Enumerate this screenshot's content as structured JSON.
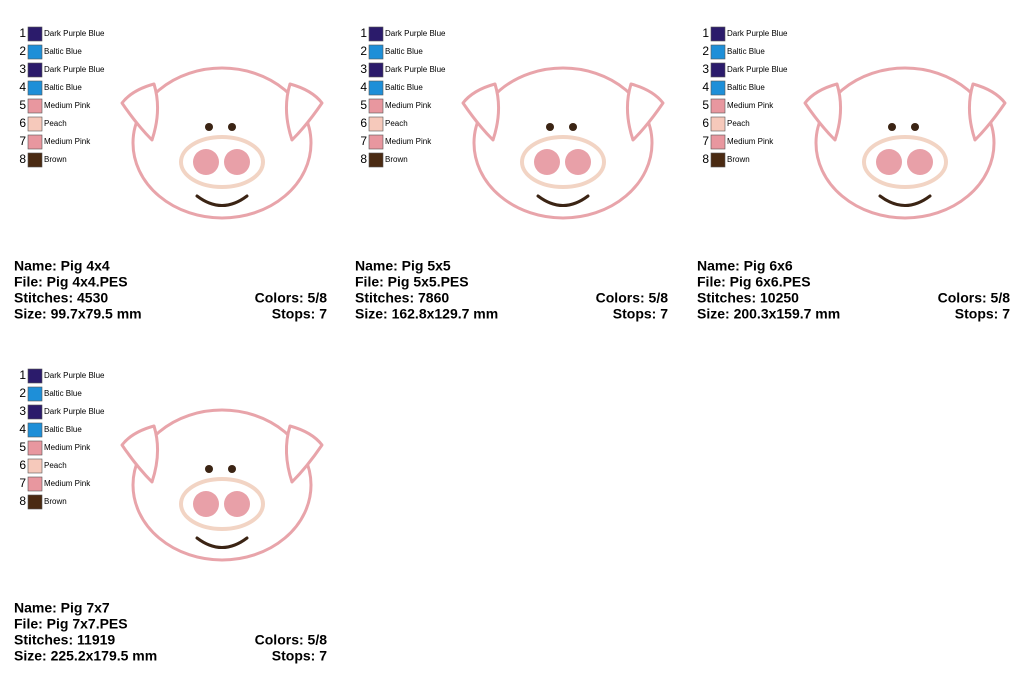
{
  "cards": [
    {
      "threads": [
        {
          "n": 1,
          "color": "#2b1b6b",
          "name": "Dark Purple Blue"
        },
        {
          "n": 2,
          "color": "#1e8fd8",
          "name": "Baltic Blue"
        },
        {
          "n": 3,
          "color": "#2b1b6b",
          "name": "Dark Purple Blue"
        },
        {
          "n": 4,
          "color": "#1e8fd8",
          "name": "Baltic Blue"
        },
        {
          "n": 5,
          "color": "#e8979f",
          "name": "Medium Pink"
        },
        {
          "n": 6,
          "color": "#f6c9bb",
          "name": "Peach"
        },
        {
          "n": 7,
          "color": "#e8979f",
          "name": "Medium Pink"
        },
        {
          "n": 8,
          "color": "#4a2a12",
          "name": "Brown"
        }
      ],
      "name": "Name: Pig 4x4",
      "file": "File: Pig 4x4.PES",
      "stitches": "Stitches: 4530",
      "colors": "Colors: 5/8",
      "size": "Size: 99.7x79.5 mm",
      "stops": "Stops: 7"
    },
    {
      "threads": [
        {
          "n": 1,
          "color": "#2b1b6b",
          "name": "Dark Purple Blue"
        },
        {
          "n": 2,
          "color": "#1e8fd8",
          "name": "Baltic Blue"
        },
        {
          "n": 3,
          "color": "#2b1b6b",
          "name": "Dark Purple Blue"
        },
        {
          "n": 4,
          "color": "#1e8fd8",
          "name": "Baltic Blue"
        },
        {
          "n": 5,
          "color": "#e8979f",
          "name": "Medium Pink"
        },
        {
          "n": 6,
          "color": "#f6c9bb",
          "name": "Peach"
        },
        {
          "n": 7,
          "color": "#e8979f",
          "name": "Medium Pink"
        },
        {
          "n": 8,
          "color": "#4a2a12",
          "name": "Brown"
        }
      ],
      "name": "Name: Pig 5x5",
      "file": "File: Pig 5x5.PES",
      "stitches": "Stitches: 7860",
      "colors": "Colors: 5/8",
      "size": "Size: 162.8x129.7 mm",
      "stops": "Stops: 7"
    },
    {
      "threads": [
        {
          "n": 1,
          "color": "#2b1b6b",
          "name": "Dark Purple Blue"
        },
        {
          "n": 2,
          "color": "#1e8fd8",
          "name": "Baltic Blue"
        },
        {
          "n": 3,
          "color": "#2b1b6b",
          "name": "Dark Purple Blue"
        },
        {
          "n": 4,
          "color": "#1e8fd8",
          "name": "Baltic Blue"
        },
        {
          "n": 5,
          "color": "#e8979f",
          "name": "Medium Pink"
        },
        {
          "n": 6,
          "color": "#f6c9bb",
          "name": "Peach"
        },
        {
          "n": 7,
          "color": "#e8979f",
          "name": "Medium Pink"
        },
        {
          "n": 8,
          "color": "#4a2a12",
          "name": "Brown"
        }
      ],
      "name": "Name: Pig 6x6",
      "file": "File: Pig 6x6.PES",
      "stitches": "Stitches: 10250",
      "colors": "Colors: 5/8",
      "size": "Size: 200.3x159.7 mm",
      "stops": "Stops: 7"
    },
    {
      "threads": [
        {
          "n": 1,
          "color": "#2b1b6b",
          "name": "Dark Purple Blue"
        },
        {
          "n": 2,
          "color": "#1e8fd8",
          "name": "Baltic Blue"
        },
        {
          "n": 3,
          "color": "#2b1b6b",
          "name": "Dark Purple Blue"
        },
        {
          "n": 4,
          "color": "#1e8fd8",
          "name": "Baltic Blue"
        },
        {
          "n": 5,
          "color": "#e8979f",
          "name": "Medium Pink"
        },
        {
          "n": 6,
          "color": "#f6c9bb",
          "name": "Peach"
        },
        {
          "n": 7,
          "color": "#e8979f",
          "name": "Medium Pink"
        },
        {
          "n": 8,
          "color": "#4a2a12",
          "name": "Brown"
        }
      ],
      "name": "Name: Pig 7x7",
      "file": "File: Pig 7x7.PES",
      "stitches": "Stitches: 11919",
      "colors": "Colors: 5/8",
      "size": "Size: 225.2x179.5 mm",
      "stops": "Stops: 7"
    }
  ]
}
